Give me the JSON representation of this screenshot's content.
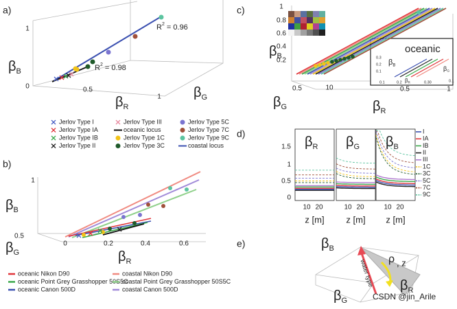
{
  "panel_a": {
    "label": "a)",
    "ticks": [
      "1",
      "0",
      "0.5",
      "1"
    ],
    "axis_b": {
      "base": "β",
      "sub": "B"
    },
    "axis_r": {
      "base": "β",
      "sub": "R"
    },
    "axis_g": {
      "base": "β",
      "sub": "G"
    },
    "fit_coastal": {
      "base": "R",
      "sup": "2",
      "rest": " = 0.96"
    },
    "fit_oceanic": {
      "base": "R",
      "sup": "2",
      "rest": " = 0.98"
    },
    "legend": [
      {
        "label": "Jerlov Type I",
        "color": "#4a5fc4",
        "marker": "x"
      },
      {
        "label": "Jerlov Type IA",
        "color": "#e0353a",
        "marker": "x"
      },
      {
        "label": "Jerlov Type IB",
        "color": "#3aa84a",
        "marker": "x"
      },
      {
        "label": "Jerlov Type II",
        "color": "#222222",
        "marker": "x"
      },
      {
        "label": "Jerlov Type III",
        "color": "#e88aa0",
        "marker": "x"
      },
      {
        "label": "oceanic locus",
        "color": "#111111",
        "marker": "line"
      },
      {
        "label": "Jerlov Type 1C",
        "color": "#f2c318",
        "marker": "dot"
      },
      {
        "label": "Jerlov Type 3C",
        "color": "#1f5a2a",
        "marker": "dot"
      },
      {
        "label": "Jerlov Type 5C",
        "color": "#7a74d0",
        "marker": "dot"
      },
      {
        "label": "Jerlov Type 7C",
        "color": "#a0503a",
        "marker": "dot"
      },
      {
        "label": "Jerlov Type 9C",
        "color": "#5cc4a0",
        "marker": "dot"
      },
      {
        "label": "coastal locus",
        "color": "#3a4fb0",
        "marker": "line"
      }
    ]
  },
  "panel_b": {
    "label": "b)",
    "ticks": [
      "1",
      "0.5",
      "0",
      "0.2",
      "0.4",
      "0.6"
    ],
    "axis_b": {
      "base": "β",
      "sub": "B"
    },
    "axis_g": {
      "base": "β",
      "sub": "G"
    },
    "axis_r": {
      "base": "β",
      "sub": "R"
    },
    "legend": [
      {
        "label": "oceanic Nikon D90",
        "color": "#e0353a"
      },
      {
        "label": "coastal Nikon D90",
        "color": "#f08a80"
      },
      {
        "label": "oceanic Point Grey Grasshopper 50S5C",
        "color": "#3aa84a"
      },
      {
        "label": "coastal Point Grey Grasshopper 50S5C",
        "color": "#8fd08a"
      },
      {
        "label": "oceanic Canon 500D",
        "color": "#3a4fb0"
      },
      {
        "label": "coastal Canon 500D",
        "color": "#a08ad8"
      }
    ]
  },
  "panel_c": {
    "label": "c)",
    "ticks": [
      "1",
      "0.8",
      "0.6",
      "0.4",
      "0.2",
      "0.5",
      "10",
      "0.5",
      "1"
    ],
    "axis_b": {
      "base": "β",
      "sub": "B"
    },
    "axis_g": {
      "base": "β",
      "sub": "G"
    },
    "axis_r": {
      "base": "β",
      "sub": "R"
    },
    "inset": {
      "title": "oceanic",
      "ticks": [
        "0.3",
        "0.2",
        "0.1",
        "0.1",
        "0.2",
        "0.30",
        "0.1"
      ],
      "axis_b": {
        "base": "β",
        "sub": "B"
      },
      "axis_r": {
        "base": "β",
        "sub": "R"
      },
      "axis_g": {
        "base": "β",
        "sub": "G"
      }
    }
  },
  "panel_d": {
    "label": "d)",
    "titles": [
      {
        "base": "β",
        "sub": "R"
      },
      {
        "base": "β",
        "sub": "G"
      },
      {
        "base": "β",
        "sub": "B"
      }
    ],
    "yticks": [
      "1.5",
      "1",
      "0.5",
      "0"
    ],
    "xticks": [
      "10",
      "20"
    ],
    "xlabel": "z [m]",
    "legend": [
      {
        "label": "I",
        "color": "#3a4fb0",
        "dash": false
      },
      {
        "label": "IA",
        "color": "#e0353a",
        "dash": false
      },
      {
        "label": "IB",
        "color": "#3aa84a",
        "dash": false
      },
      {
        "label": "II",
        "color": "#222222",
        "dash": false
      },
      {
        "label": "III",
        "color": "#b07ad0",
        "dash": false
      },
      {
        "label": "1C",
        "color": "#f2c318",
        "dash": true
      },
      {
        "label": "3C",
        "color": "#1f5a2a",
        "dash": true
      },
      {
        "label": "5C",
        "color": "#7a74d0",
        "dash": true
      },
      {
        "label": "7C",
        "color": "#a0503a",
        "dash": true
      },
      {
        "label": "9C",
        "color": "#5cc4a0",
        "dash": true
      }
    ]
  },
  "panel_e": {
    "label": "e)",
    "axis_b": {
      "base": "β",
      "sub": "B"
    },
    "axis_g": {
      "base": "β",
      "sub": "G"
    },
    "axis_r": {
      "base": "β",
      "sub": "R"
    },
    "rho": "ρ",
    "z": ", z",
    "arrow_label": "water type"
  },
  "watermark": "CSDN @jin_Arile"
}
